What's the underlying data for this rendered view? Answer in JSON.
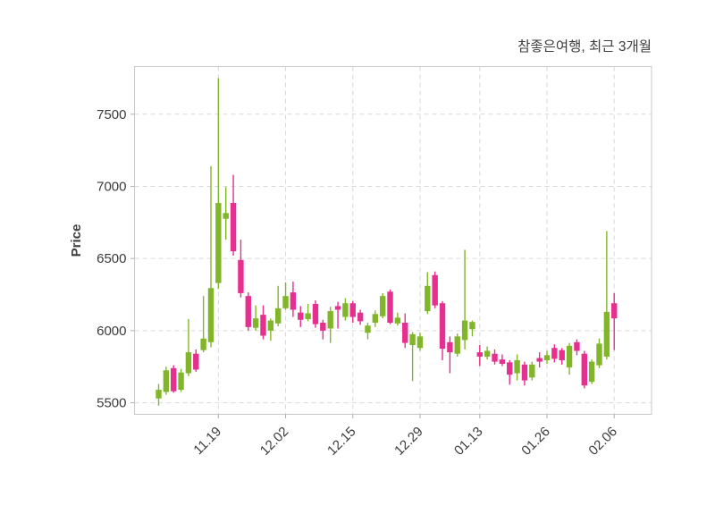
{
  "title": "참좋은여행, 최근 3개월",
  "axes": {
    "y_label": "Price",
    "y_tick_labels": [
      "7500",
      "7000",
      "6500",
      "6000",
      "5500"
    ],
    "x_tick_labels": [
      "11.19",
      "12.02",
      "12.15",
      "12.29",
      "01.13",
      "01.26",
      "02.06"
    ]
  },
  "colors": {
    "up": "#82b62a",
    "down": "#e6308f",
    "grid": "#d9d9d9",
    "spine": "#c9c9c9",
    "tick": "#aeaeae",
    "text": "#3a3a3a",
    "background": "#ffffff"
  },
  "chart_data": {
    "type": "candlestick",
    "title": "참좋은여행, 최근 3개월",
    "xlabel": "",
    "ylabel": "Price",
    "ylim": [
      5420,
      7830
    ],
    "y_ticks": [
      7500,
      7000,
      6500,
      6000,
      5500
    ],
    "x_tick_labels": [
      "11.19",
      "12.02",
      "12.15",
      "12.29",
      "01.13",
      "01.26",
      "02.06"
    ],
    "x_tick_indices": [
      8,
      17,
      26,
      35,
      43,
      52,
      61
    ],
    "grid": "dashed-both",
    "legend": "none",
    "up_color": "#82b62a",
    "down_color": "#e6308f",
    "columns": [
      "open",
      "high",
      "low",
      "close"
    ],
    "candles": [
      [
        5530,
        5630,
        5480,
        5590
      ],
      [
        5575,
        5750,
        5555,
        5725
      ],
      [
        5740,
        5760,
        5570,
        5580
      ],
      [
        5590,
        5735,
        5575,
        5710
      ],
      [
        5705,
        6080,
        5685,
        5850
      ],
      [
        5840,
        5870,
        5715,
        5730
      ],
      [
        5865,
        6240,
        5850,
        5945
      ],
      [
        5920,
        7140,
        5885,
        6295
      ],
      [
        6330,
        7750,
        6290,
        6885
      ],
      [
        6775,
        6995,
        6630,
        6815
      ],
      [
        6885,
        7080,
        6520,
        6550
      ],
      [
        6490,
        6630,
        6230,
        6260
      ],
      [
        6240,
        6265,
        6000,
        6025
      ],
      [
        6020,
        6175,
        6000,
        6085
      ],
      [
        6110,
        6175,
        5940,
        5965
      ],
      [
        6000,
        6085,
        5930,
        6070
      ],
      [
        6050,
        6310,
        6030,
        6155
      ],
      [
        6155,
        6335,
        6145,
        6240
      ],
      [
        6265,
        6340,
        6095,
        6145
      ],
      [
        6125,
        6170,
        6025,
        6075
      ],
      [
        6080,
        6185,
        6065,
        6120
      ],
      [
        6185,
        6210,
        6020,
        6045
      ],
      [
        6055,
        6075,
        5940,
        6000
      ],
      [
        6015,
        6165,
        5915,
        6135
      ],
      [
        6170,
        6200,
        6015,
        6145
      ],
      [
        6095,
        6225,
        6070,
        6190
      ],
      [
        6190,
        6205,
        6055,
        6095
      ],
      [
        6125,
        6145,
        6040,
        6065
      ],
      [
        5985,
        6055,
        5940,
        6035
      ],
      [
        6055,
        6140,
        6025,
        6115
      ],
      [
        6100,
        6260,
        6085,
        6240
      ],
      [
        6270,
        6285,
        6045,
        6055
      ],
      [
        6050,
        6125,
        6035,
        6090
      ],
      [
        6055,
        6120,
        5880,
        5915
      ],
      [
        5900,
        5990,
        5650,
        5975
      ],
      [
        5880,
        5985,
        5860,
        5960
      ],
      [
        6135,
        6405,
        6115,
        6310
      ],
      [
        6385,
        6410,
        6155,
        6175
      ],
      [
        6190,
        6205,
        5795,
        5875
      ],
      [
        5920,
        5960,
        5705,
        5850
      ],
      [
        5840,
        5980,
        5820,
        5960
      ],
      [
        5935,
        6560,
        5870,
        6070
      ],
      [
        6010,
        6070,
        5960,
        6060
      ],
      [
        5850,
        5900,
        5755,
        5820
      ],
      [
        5820,
        5890,
        5800,
        5860
      ],
      [
        5840,
        5870,
        5765,
        5785
      ],
      [
        5800,
        5835,
        5755,
        5770
      ],
      [
        5780,
        5795,
        5625,
        5695
      ],
      [
        5705,
        5835,
        5655,
        5795
      ],
      [
        5765,
        5785,
        5620,
        5655
      ],
      [
        5675,
        5785,
        5655,
        5765
      ],
      [
        5810,
        5850,
        5745,
        5785
      ],
      [
        5795,
        5860,
        5770,
        5830
      ],
      [
        5880,
        5905,
        5780,
        5805
      ],
      [
        5865,
        5880,
        5765,
        5795
      ],
      [
        5745,
        5915,
        5695,
        5895
      ],
      [
        5920,
        5940,
        5830,
        5860
      ],
      [
        5840,
        5860,
        5600,
        5620
      ],
      [
        5645,
        5800,
        5630,
        5785
      ],
      [
        5760,
        5945,
        5740,
        5910
      ],
      [
        5820,
        6690,
        5800,
        6130
      ],
      [
        6190,
        6260,
        5865,
        6085
      ]
    ]
  }
}
